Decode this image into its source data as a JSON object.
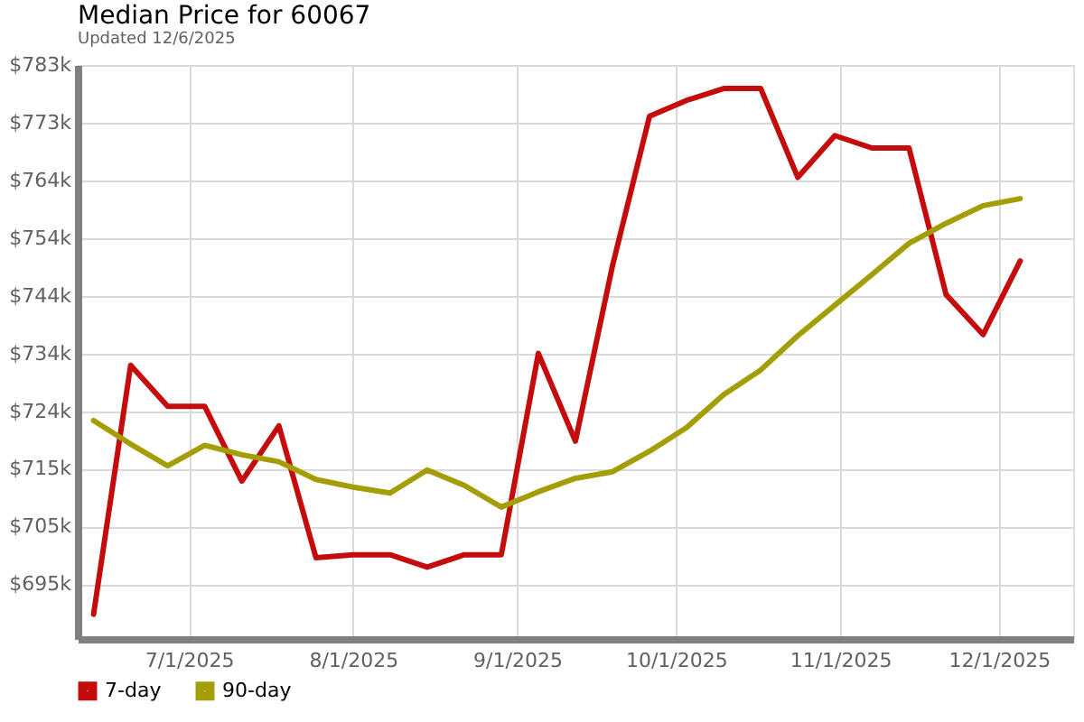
{
  "chart_data": {
    "type": "line",
    "title": "Median Price for 60067",
    "subtitle": "Updated 12/6/2025",
    "x": [
      "2025-06-13",
      "2025-06-20",
      "2025-06-27",
      "2025-07-04",
      "2025-07-11",
      "2025-07-18",
      "2025-07-25",
      "2025-08-01",
      "2025-08-08",
      "2025-08-15",
      "2025-08-22",
      "2025-08-29",
      "2025-09-05",
      "2025-09-12",
      "2025-09-19",
      "2025-09-26",
      "2025-10-03",
      "2025-10-10",
      "2025-10-17",
      "2025-10-24",
      "2025-10-31",
      "2025-11-07",
      "2025-11-14",
      "2025-11-21",
      "2025-11-28",
      "2025-12-05"
    ],
    "series": [
      {
        "name": "7-day",
        "color": "#c40c0c",
        "values": [
          689900,
          732200,
          725200,
          725200,
          712500,
          721900,
          699500,
          700000,
          700000,
          697900,
          700000,
          700000,
          734200,
          719300,
          749100,
          774500,
          777200,
          779200,
          779200,
          764100,
          771200,
          769100,
          769100,
          744200,
          737400,
          749900
        ]
      },
      {
        "name": "90-day",
        "color": "#a39e06",
        "values": [
          722800,
          718800,
          715100,
          718600,
          717000,
          715800,
          712800,
          711500,
          710500,
          714400,
          711800,
          708100,
          710700,
          713000,
          714100,
          717600,
          721600,
          727200,
          731400,
          737200,
          742400,
          747600,
          752900,
          756300,
          759300,
          760500
        ]
      }
    ],
    "xlim": [
      "2025-06-10",
      "2025-12-15"
    ],
    "xticks": [
      {
        "value": "2025-07-01",
        "label": "7/1/2025"
      },
      {
        "value": "2025-08-01",
        "label": "8/1/2025"
      },
      {
        "value": "2025-09-01",
        "label": "9/1/2025"
      },
      {
        "value": "2025-10-01",
        "label": "10/1/2025"
      },
      {
        "value": "2025-11-01",
        "label": "11/1/2025"
      },
      {
        "value": "2025-12-01",
        "label": "12/1/2025"
      }
    ],
    "ylim": [
      685700,
      783200
    ],
    "yticks": [
      {
        "value": 695000,
        "label": "$695k"
      },
      {
        "value": 704800,
        "label": "$705k"
      },
      {
        "value": 714600,
        "label": "$715k"
      },
      {
        "value": 724400,
        "label": "$724k"
      },
      {
        "value": 734200,
        "label": "$734k"
      },
      {
        "value": 744000,
        "label": "$744k"
      },
      {
        "value": 753800,
        "label": "$754k"
      },
      {
        "value": 763600,
        "label": "$764k"
      },
      {
        "value": 773400,
        "label": "$773k"
      },
      {
        "value": 783200,
        "label": "$783k"
      }
    ],
    "grid": true,
    "legend": "bottom left",
    "marker": "none",
    "line_style": "solid"
  }
}
